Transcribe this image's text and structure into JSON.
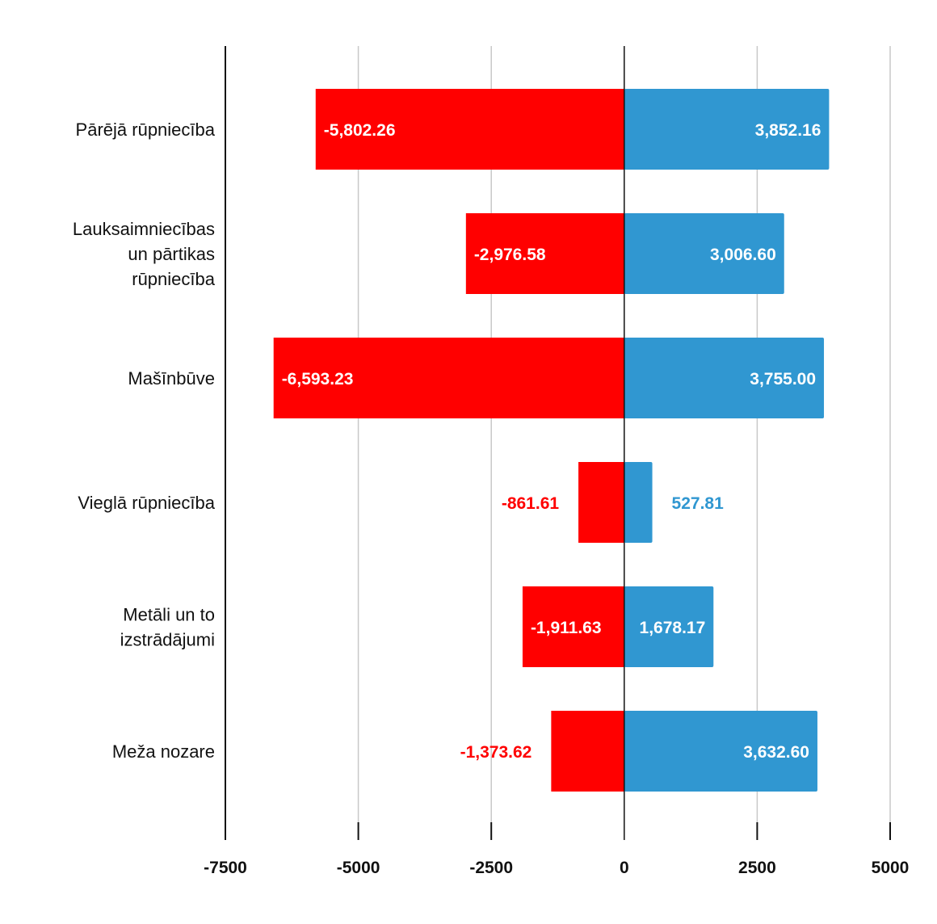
{
  "chart_data": {
    "type": "bar",
    "orientation": "horizontal",
    "stacked": "diverging",
    "title": "",
    "xlabel": "",
    "ylabel": "",
    "xlim": [
      -7500,
      5000
    ],
    "x_ticks": [
      -7500,
      -5000,
      -2500,
      0,
      2500,
      5000
    ],
    "grid": "vertical",
    "legend": "none",
    "categories": [
      [
        "Pārējā rūpniecība"
      ],
      [
        "Lauksaimniecības",
        "un pārtikas",
        "rūpniecība"
      ],
      [
        "Mašīnbūve"
      ],
      [
        "Vieglā rūpniecība"
      ],
      [
        "Metāli un to",
        "izstrādājumi"
      ],
      [
        "Meža nozare"
      ]
    ],
    "series": [
      {
        "color": "#ff0000",
        "values": [
          -5802.26,
          -2976.58,
          -6593.23,
          -861.61,
          -1911.63,
          -1373.62
        ],
        "labels": [
          "-5,802.26",
          "-2,976.58",
          "-6,593.23",
          "-861.61",
          "-1,911.63",
          "-1,373.62"
        ]
      },
      {
        "color": "#3097d1",
        "values": [
          3852.16,
          3006.6,
          3755.0,
          527.81,
          1678.17,
          3632.6
        ],
        "labels": [
          "3,852.16",
          "3,006.60",
          "3,755.00",
          "527.81",
          "1,678.17",
          "3,632.60"
        ]
      }
    ]
  }
}
